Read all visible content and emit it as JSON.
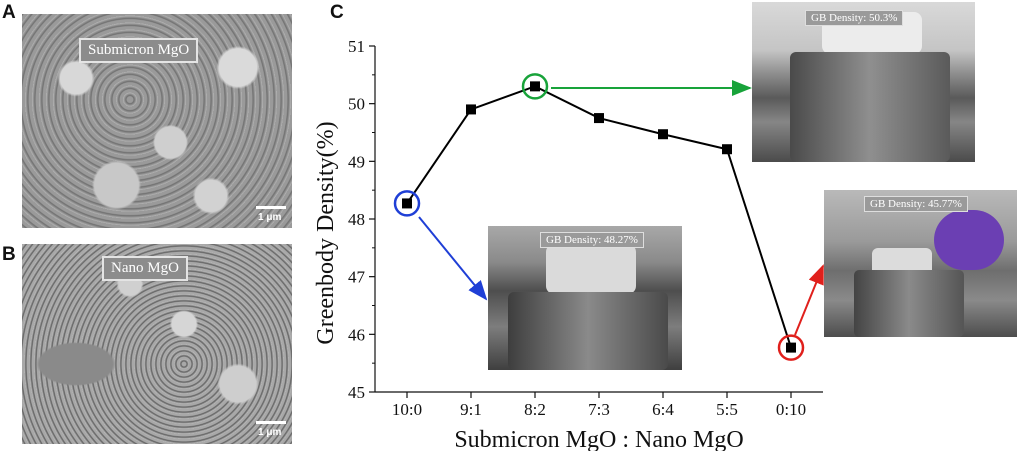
{
  "panels": {
    "a": "A",
    "b": "B",
    "c": "C"
  },
  "sem_images": [
    {
      "label": "Submicron MgO",
      "scale": "1 μm"
    },
    {
      "label": "Nano MgO",
      "scale": "1 μm"
    }
  ],
  "photos": [
    {
      "badge": "GB Density: 50.3%"
    },
    {
      "badge": "GB Density: 48.27%"
    },
    {
      "badge": "GB Density: 45.77%"
    }
  ],
  "chart_data": {
    "type": "line",
    "categories": [
      "10:0",
      "9:1",
      "8:2",
      "7:3",
      "6:4",
      "5:5",
      "0:10"
    ],
    "values": [
      48.27,
      49.9,
      50.3,
      49.75,
      49.47,
      49.21,
      45.77
    ],
    "xlabel": "Submicron MgO : Nano MgO",
    "ylabel": "Greenbody Density(%)",
    "ylim": [
      45,
      51
    ],
    "yticks": [
      "45",
      "46",
      "47",
      "48",
      "49",
      "50",
      "51"
    ],
    "highlights": [
      {
        "category": "10:0",
        "color": "#1f3fd6"
      },
      {
        "category": "8:2",
        "color": "#18a33a"
      },
      {
        "category": "0:10",
        "color": "#e0201c"
      }
    ]
  }
}
